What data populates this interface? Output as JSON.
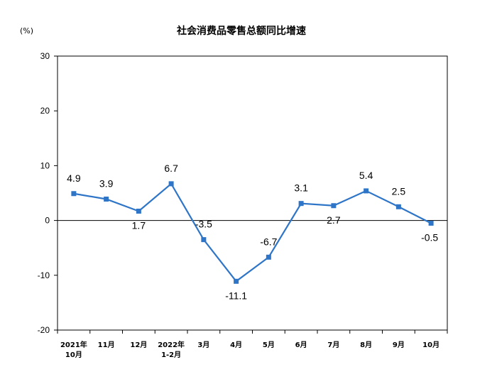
{
  "chart_data": {
    "type": "line",
    "title": "社会消费品零售总额同比增速",
    "unit": "(%)",
    "categories": [
      [
        "2021年",
        "10月"
      ],
      [
        "11月"
      ],
      [
        "12月"
      ],
      [
        "2022年",
        "1-2月"
      ],
      [
        "3月"
      ],
      [
        "4月"
      ],
      [
        "5月"
      ],
      [
        "6月"
      ],
      [
        "7月"
      ],
      [
        "8月"
      ],
      [
        "9月"
      ],
      [
        "10月"
      ]
    ],
    "series": [
      {
        "values": [
          4.9,
          3.9,
          1.7,
          6.7,
          -3.5,
          -11.1,
          -6.7,
          3.1,
          2.7,
          5.4,
          2.5,
          -0.5
        ]
      }
    ],
    "data_labels": [
      "4.9",
      "3.9",
      "1.7",
      "6.7",
      "-3.5",
      "-11.1",
      "-6.7",
      "3.1",
      "2.7",
      "5.4",
      "2.5",
      "-0.5"
    ],
    "yticks": [
      30,
      20,
      10,
      0,
      -10,
      -20
    ],
    "ylim": [
      -20,
      30
    ],
    "grid": false,
    "colors": {
      "line": "#2E75C8",
      "axis": "#000000"
    }
  }
}
